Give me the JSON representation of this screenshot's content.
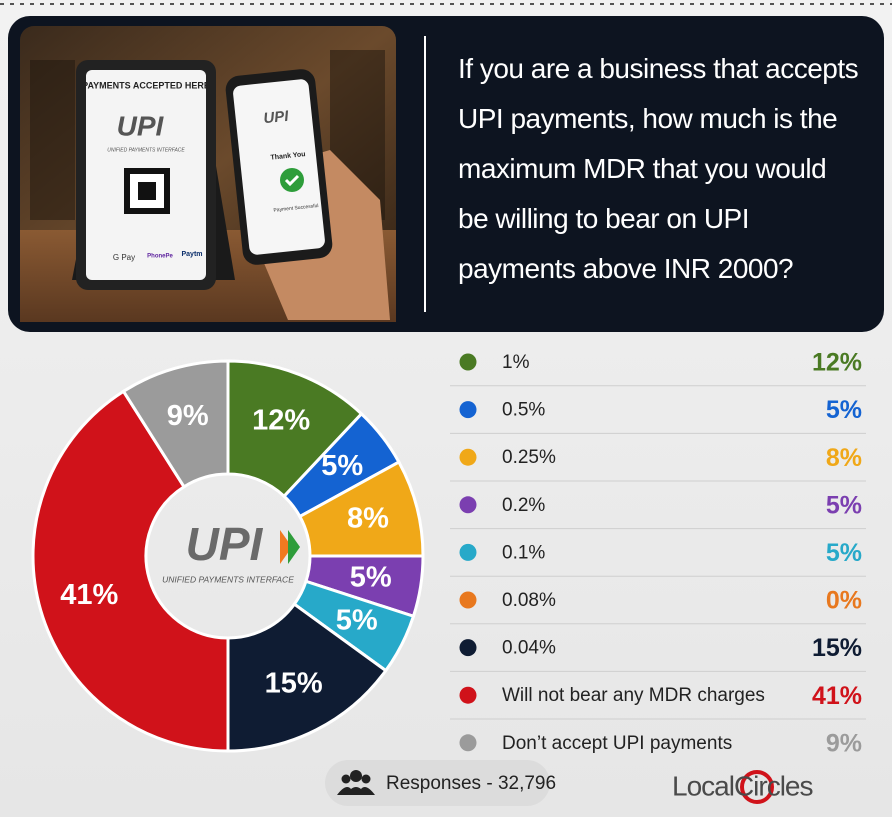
{
  "header": {
    "question": "If you are a business that accepts UPI payments, how much is the maximum MDR that you would be willing to bear on UPI payments above INR 2000?",
    "photo_texts": {
      "sign_title": "PAYMENTS ACCEPTED HERE",
      "sign_logo": "UPI",
      "sign_caption": "UNIFIED PAYMENTS INTERFACE",
      "gpay": "G Pay",
      "phonepe": "PhonePe",
      "paytm": "Paytm",
      "phone_logo": "UPI",
      "thank_you": "Thank You",
      "payment_status": "Payment Successful"
    }
  },
  "chart_data": {
    "type": "donut",
    "categories": [
      "1%",
      "0.5%",
      "0.25%",
      "0.2%",
      "0.1%",
      "0.08%",
      "0.04%",
      "Will not bear any MDR charges",
      "Don’t accept UPI payments"
    ],
    "values": [
      12,
      5,
      8,
      5,
      5,
      0,
      15,
      41,
      9
    ],
    "value_labels": [
      "12%",
      "5%",
      "8%",
      "5%",
      "5%",
      "0%",
      "15%",
      "41%",
      "9%"
    ],
    "colors": [
      "#4a7a23",
      "#1463d2",
      "#f0a818",
      "#7b3fb0",
      "#27a9c9",
      "#e8781e",
      "#0f1c33",
      "#d0121a",
      "#9b9b9b"
    ],
    "center_logo": "UPI",
    "center_caption": "UNIFIED PAYMENTS INTERFACE"
  },
  "footer": {
    "responses": "Responses - 32,796",
    "brand": "LocalCircles"
  }
}
